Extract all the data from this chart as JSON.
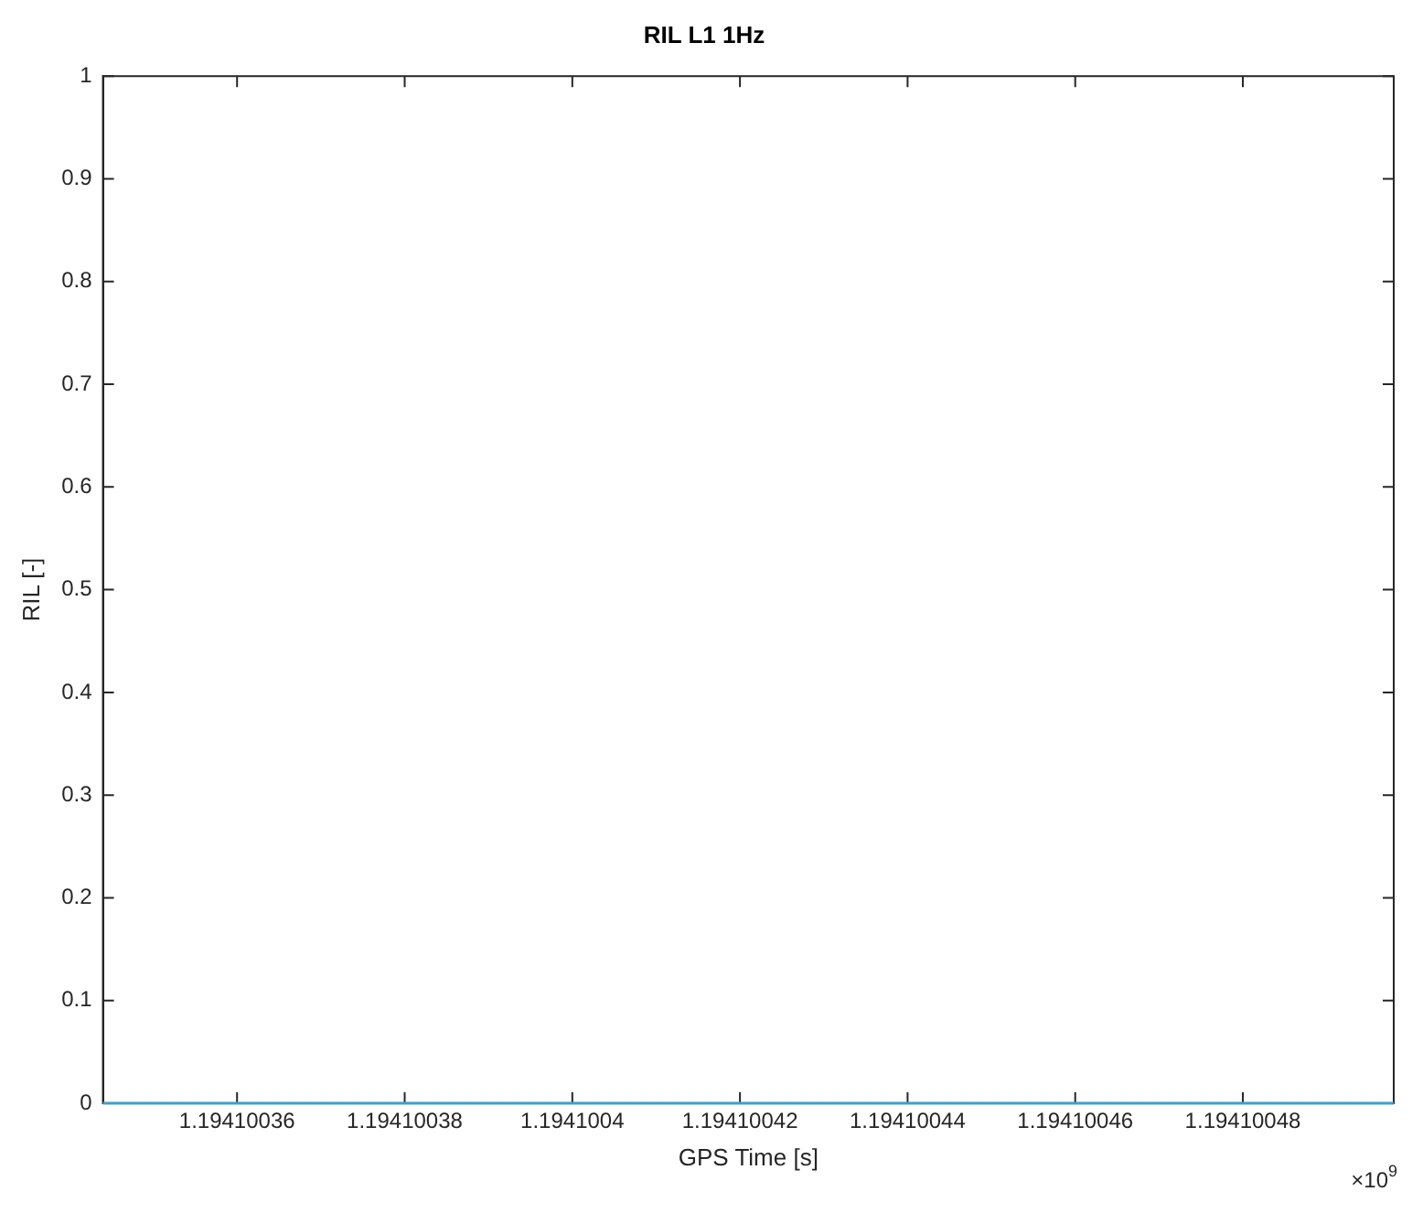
{
  "chart_data": {
    "type": "line",
    "title": "RIL L1 1Hz",
    "xlabel": "GPS Time [s]",
    "ylabel": "RIL [-]",
    "x": [
      1.194100344,
      1.194100498
    ],
    "series": [
      {
        "color": "#3c9fd0",
        "values": [
          0,
          0
        ]
      }
    ],
    "xlim": [
      1.194100344,
      1.194100498
    ],
    "xticks": [
      1.19410036,
      1.19410038,
      1.1941004,
      1.19410042,
      1.19410044,
      1.19410046,
      1.19410048
    ],
    "ylim": [
      0,
      1
    ],
    "yticks": [
      0,
      0.1,
      0.2,
      0.3,
      0.4,
      0.5,
      0.6,
      0.7,
      0.8,
      0.9,
      1
    ],
    "annotations": [
      "×10$^{9}$"
    ],
    "marker": "none",
    "line_style": "solid"
  }
}
